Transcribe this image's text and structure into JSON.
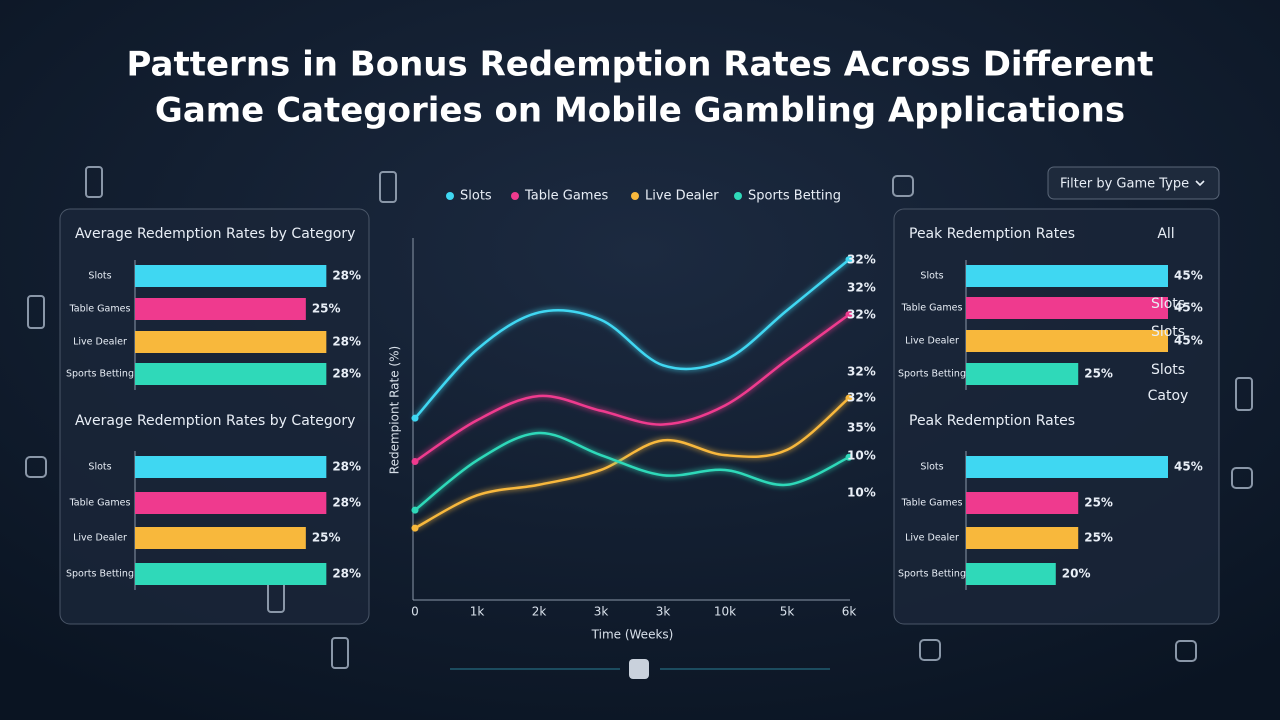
{
  "title": "Patterns in Bonus Redemption Rates Across Different Game Categories on Mobile Gambling Applications",
  "filter_label": "Filter by Game Type",
  "chart_data": [
    {
      "type": "bar",
      "title": "Average Redemption Rates by Category",
      "categories": [
        "Slots",
        "Table Games",
        "Live Dealer",
        "Sports Betting"
      ],
      "values": [
        28,
        25,
        28,
        28
      ],
      "value_labels": [
        "28%",
        "25%",
        "28%",
        "28%"
      ],
      "colors": [
        "#3fd7f2",
        "#ef3a8e",
        "#f8b83c",
        "#2fd9b9"
      ],
      "xlim": [
        0,
        30
      ]
    },
    {
      "type": "bar",
      "title": "Average Redemption Rates by Category",
      "categories": [
        "Slots",
        "Table Games",
        "Live Dealer",
        "Sports Betting"
      ],
      "values": [
        28,
        28,
        25,
        28
      ],
      "value_labels": [
        "28%",
        "28%",
        "25%",
        "28%"
      ],
      "colors": [
        "#3fd7f2",
        "#ef3a8e",
        "#f8b83c",
        "#2fd9b9"
      ],
      "xlim": [
        0,
        30
      ]
    },
    {
      "type": "line",
      "xlabel": "Time (Weeks)",
      "ylabel": "Redempiont Rate (%)",
      "categories": [
        "0",
        "1k",
        "2k",
        "3k",
        "3k",
        "10k",
        "5k",
        "6k"
      ],
      "ylim": [
        0,
        35
      ],
      "series": [
        {
          "name": "Slots",
          "color": "#3fd7f2",
          "values": [
            17.2,
            23.7,
            27.2,
            26.5,
            22.2,
            22.7,
            27.4,
            32.2
          ]
        },
        {
          "name": "Table Games",
          "color": "#ef3a8e",
          "values": [
            13.1,
            17.0,
            19.3,
            17.9,
            16.6,
            18.4,
            22.7,
            27.0
          ]
        },
        {
          "name": "Live Dealer",
          "color": "#f8b83c",
          "values": [
            6.8,
            9.9,
            10.9,
            12.3,
            15.1,
            13.7,
            14.2,
            19.1
          ]
        },
        {
          "name": "Sports Betting",
          "color": "#2fd9b9",
          "values": [
            8.5,
            13.2,
            15.8,
            13.7,
            11.8,
            12.3,
            10.9,
            13.5
          ]
        }
      ],
      "annotations": [
        {
          "text": "32%",
          "color": "#3fd7f2"
        },
        {
          "text": "32%",
          "color": "#3fd7f2"
        },
        {
          "text": "32%",
          "color": "#ef3a8e"
        },
        {
          "text": "32%",
          "color": "#ef3a8e"
        },
        {
          "text": "32%",
          "color": "#f8b83c"
        },
        {
          "text": "35%",
          "color": "#f8b83c"
        },
        {
          "text": "10%",
          "color": "#2fd9b9"
        },
        {
          "text": "10%",
          "color": "#3fd7f2"
        }
      ]
    },
    {
      "type": "bar",
      "title": "Peak Redemption Rates",
      "header_label": "All",
      "side_labels": [
        "Slots",
        "Slots",
        "Slots",
        "Catoy"
      ],
      "categories": [
        "Slots",
        "Table Games",
        "Live Dealer",
        "Sports Betting"
      ],
      "values": [
        45,
        45,
        45,
        25
      ],
      "value_labels": [
        "45%",
        "45%",
        "45%",
        "25%"
      ],
      "colors": [
        "#3fd7f2",
        "#ef3a8e",
        "#f8b83c",
        "#2fd9b9"
      ],
      "xlim": [
        0,
        45
      ]
    },
    {
      "type": "bar",
      "title": "Peak Redemption Rates",
      "categories": [
        "Slots",
        "Table Games",
        "Live Dealer",
        "Sports Betting"
      ],
      "values": [
        45,
        25,
        25,
        20
      ],
      "value_labels": [
        "45%",
        "25%",
        "25%",
        "20%"
      ],
      "colors": [
        "#3fd7f2",
        "#ef3a8e",
        "#f8b83c",
        "#2fd9b9"
      ],
      "xlim": [
        0,
        45
      ]
    }
  ]
}
